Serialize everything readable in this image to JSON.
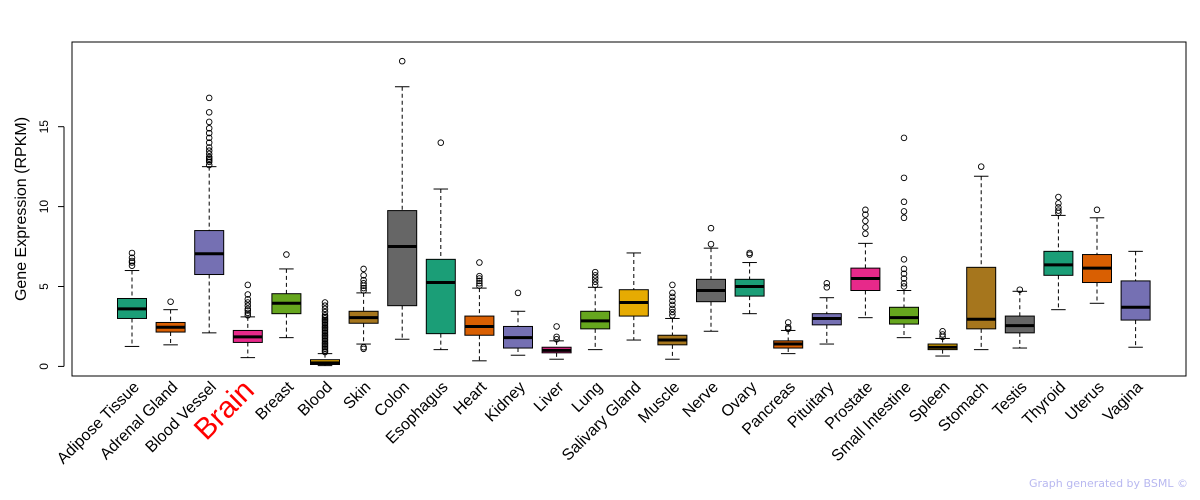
{
  "chart_data": {
    "type": "boxplot",
    "ylabel": "Gene Expression (RPKM)",
    "xlabel": "",
    "ylim": [
      -0.6,
      20.3
    ],
    "yticks": [
      0,
      5,
      10,
      15
    ],
    "highlight": {
      "category": "Brain",
      "color": "#ff0000"
    },
    "series": [
      {
        "name": "Adipose Tissue",
        "color": "#1b9e77",
        "whisker_low": 1.25,
        "q1": 3.0,
        "median": 3.6,
        "q3": 4.25,
        "whisker_high": 6.0,
        "outliers": [
          6.3,
          6.5,
          6.6,
          6.8,
          7.1
        ]
      },
      {
        "name": "Adrenal Gland",
        "color": "#d95f02",
        "whisker_low": 1.35,
        "q1": 2.15,
        "median": 2.45,
        "q3": 2.75,
        "whisker_high": 3.55,
        "outliers": [
          4.05
        ]
      },
      {
        "name": "Blood Vessel",
        "color": "#7570b3",
        "whisker_low": 2.1,
        "q1": 5.75,
        "median": 7.05,
        "q3": 8.5,
        "whisker_high": 12.5,
        "outliers": [
          12.6,
          12.8,
          12.9,
          13.0,
          13.1,
          13.3,
          13.5,
          13.7,
          14.0,
          14.3,
          14.6,
          14.9,
          15.3,
          15.9,
          16.8
        ]
      },
      {
        "name": "Brain",
        "color": "#e7298a",
        "whisker_low": 0.55,
        "q1": 1.5,
        "median": 1.85,
        "q3": 2.25,
        "whisker_high": 3.1,
        "outliers": [
          3.2,
          3.35,
          3.5,
          3.6,
          3.8,
          4.0,
          4.2,
          4.5,
          5.1
        ]
      },
      {
        "name": "Breast",
        "color": "#66a61e",
        "whisker_low": 1.8,
        "q1": 3.3,
        "median": 3.95,
        "q3": 4.55,
        "whisker_high": 6.1,
        "outliers": [
          7.0
        ]
      },
      {
        "name": "Blood",
        "color": "#e6ab02",
        "whisker_low": 0.05,
        "q1": 0.12,
        "median": 0.22,
        "q3": 0.42,
        "whisker_high": 0.8,
        "outliers": [
          0.9,
          1.0,
          1.1,
          1.2,
          1.3,
          1.4,
          1.5,
          1.6,
          1.7,
          1.8,
          1.9,
          2.0,
          2.1,
          2.2,
          2.3,
          2.4,
          2.5,
          2.6,
          2.7,
          2.8,
          2.9,
          3.0,
          3.1,
          3.2,
          3.4,
          3.6,
          3.8,
          4.0
        ]
      },
      {
        "name": "Skin",
        "color": "#a6761d",
        "whisker_low": 1.4,
        "q1": 2.7,
        "median": 3.05,
        "q3": 3.45,
        "whisker_high": 4.6,
        "outliers": [
          1.1,
          1.2,
          4.75,
          4.9,
          5.05,
          5.2,
          5.4,
          5.7,
          6.1
        ]
      },
      {
        "name": "Colon",
        "color": "#666666",
        "whisker_low": 1.7,
        "q1": 3.8,
        "median": 7.5,
        "q3": 9.75,
        "whisker_high": 17.5,
        "outliers": [
          19.1
        ]
      },
      {
        "name": "Esophagus",
        "color": "#1b9e77",
        "whisker_low": 1.05,
        "q1": 2.05,
        "median": 5.25,
        "q3": 6.7,
        "whisker_high": 11.1,
        "outliers": [
          14.0
        ]
      },
      {
        "name": "Heart",
        "color": "#d95f02",
        "whisker_low": 0.35,
        "q1": 1.95,
        "median": 2.5,
        "q3": 3.15,
        "whisker_high": 4.9,
        "outliers": [
          5.05,
          5.2,
          5.35,
          5.5,
          5.65,
          6.5
        ]
      },
      {
        "name": "Kidney",
        "color": "#7570b3",
        "whisker_low": 0.7,
        "q1": 1.15,
        "median": 1.8,
        "q3": 2.5,
        "whisker_high": 3.45,
        "outliers": [
          4.6
        ]
      },
      {
        "name": "Liver",
        "color": "#e7298a",
        "whisker_low": 0.45,
        "q1": 0.85,
        "median": 1.0,
        "q3": 1.2,
        "whisker_high": 1.6,
        "outliers": [
          1.7,
          1.85,
          2.5
        ]
      },
      {
        "name": "Lung",
        "color": "#66a61e",
        "whisker_low": 1.05,
        "q1": 2.35,
        "median": 2.85,
        "q3": 3.45,
        "whisker_high": 4.95,
        "outliers": [
          5.1,
          5.3,
          5.5,
          5.7,
          5.9
        ]
      },
      {
        "name": "Salivary Gland",
        "color": "#e6ab02",
        "whisker_low": 1.65,
        "q1": 3.15,
        "median": 4.0,
        "q3": 4.8,
        "whisker_high": 7.1,
        "outliers": []
      },
      {
        "name": "Muscle",
        "color": "#a6761d",
        "whisker_low": 0.45,
        "q1": 1.35,
        "median": 1.65,
        "q3": 1.95,
        "whisker_high": 3.0,
        "outliers": [
          3.2,
          3.4,
          3.6,
          3.85,
          4.1,
          4.35,
          4.6,
          5.1
        ]
      },
      {
        "name": "Nerve",
        "color": "#666666",
        "whisker_low": 2.2,
        "q1": 4.05,
        "median": 4.75,
        "q3": 5.45,
        "whisker_high": 7.4,
        "outliers": [
          7.65,
          8.65
        ]
      },
      {
        "name": "Ovary",
        "color": "#1b9e77",
        "whisker_low": 3.3,
        "q1": 4.4,
        "median": 5.0,
        "q3": 5.45,
        "whisker_high": 6.5,
        "outliers": [
          7.0,
          7.1
        ]
      },
      {
        "name": "Pancreas",
        "color": "#d95f02",
        "whisker_low": 0.8,
        "q1": 1.15,
        "median": 1.4,
        "q3": 1.6,
        "whisker_high": 2.25,
        "outliers": [
          2.35,
          2.45,
          2.75
        ]
      },
      {
        "name": "Pituitary",
        "color": "#7570b3",
        "whisker_low": 1.4,
        "q1": 2.6,
        "median": 3.0,
        "q3": 3.3,
        "whisker_high": 4.3,
        "outliers": [
          4.95,
          5.2
        ]
      },
      {
        "name": "Prostate",
        "color": "#e7298a",
        "whisker_low": 3.05,
        "q1": 4.75,
        "median": 5.5,
        "q3": 6.15,
        "whisker_high": 7.7,
        "outliers": [
          8.3,
          8.7,
          9.1,
          9.5,
          9.8
        ]
      },
      {
        "name": "Small Intestine",
        "color": "#66a61e",
        "whisker_low": 1.8,
        "q1": 2.65,
        "median": 3.05,
        "q3": 3.7,
        "whisker_high": 4.75,
        "outliers": [
          5.0,
          5.2,
          5.5,
          5.8,
          6.1,
          6.7,
          9.3,
          9.7,
          10.3,
          11.8,
          14.3
        ]
      },
      {
        "name": "Spleen",
        "color": "#e6ab02",
        "whisker_low": 0.65,
        "q1": 1.05,
        "median": 1.2,
        "q3": 1.4,
        "whisker_high": 1.75,
        "outliers": [
          1.85,
          2.0,
          2.2
        ]
      },
      {
        "name": "Stomach",
        "color": "#a6761d",
        "whisker_low": 1.05,
        "q1": 2.35,
        "median": 2.95,
        "q3": 6.2,
        "whisker_high": 11.9,
        "outliers": [
          12.5
        ]
      },
      {
        "name": "Testis",
        "color": "#666666",
        "whisker_low": 1.15,
        "q1": 2.1,
        "median": 2.55,
        "q3": 3.15,
        "whisker_high": 4.7,
        "outliers": [
          4.8
        ]
      },
      {
        "name": "Thyroid",
        "color": "#1b9e77",
        "whisker_low": 3.55,
        "q1": 5.7,
        "median": 6.35,
        "q3": 7.2,
        "whisker_high": 9.45,
        "outliers": [
          9.6,
          9.75,
          9.95,
          10.2,
          10.6
        ]
      },
      {
        "name": "Uterus",
        "color": "#d95f02",
        "whisker_low": 3.95,
        "q1": 5.25,
        "median": 6.15,
        "q3": 7.0,
        "whisker_high": 9.3,
        "outliers": [
          9.8
        ]
      },
      {
        "name": "Vagina",
        "color": "#7570b3",
        "whisker_low": 1.2,
        "q1": 2.9,
        "median": 3.7,
        "q3": 5.35,
        "whisker_high": 7.2,
        "outliers": []
      }
    ]
  },
  "footer": {
    "credit": "Graph generated by BSML ©"
  }
}
